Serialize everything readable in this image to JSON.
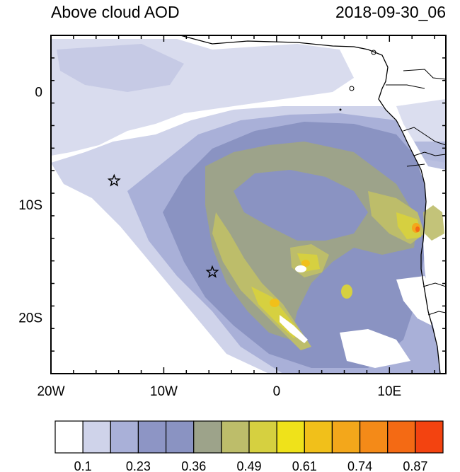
{
  "map": {
    "title": "Above cloud AOD",
    "timestamp": "2018-09-30_06",
    "x_ticks": [
      {
        "lon": -20,
        "label": "20W"
      },
      {
        "lon": -10,
        "label": "10W"
      },
      {
        "lon": 0,
        "label": "0"
      },
      {
        "lon": 10,
        "label": "10E"
      }
    ],
    "y_ticks": [
      {
        "lat": 0,
        "label": "0"
      },
      {
        "lat": -10,
        "label": "10S"
      },
      {
        "lat": -20,
        "label": "20S"
      }
    ],
    "extent": {
      "lon_min": -20,
      "lon_max": 15,
      "lat_min": -25,
      "lat_max": 5
    },
    "markers": [
      {
        "name": "site-star-1",
        "lon": -14.4,
        "lat": -7.9
      },
      {
        "name": "site-star-2",
        "lon": -5.7,
        "lat": -16.0
      }
    ],
    "colorbar": {
      "colors": [
        "#ffffff",
        "#cfd3ea",
        "#a9b0d8",
        "#8d95c5",
        "#8a93c2",
        "#9da38a",
        "#bdbd6a",
        "#d6d040",
        "#efe21a",
        "#f1c01a",
        "#f3a71b",
        "#f48a18",
        "#f46a14",
        "#f34310"
      ],
      "labels": [
        "0.1",
        "0.23",
        "0.36",
        "0.49",
        "0.61",
        "0.74",
        "0.87"
      ]
    }
  }
}
